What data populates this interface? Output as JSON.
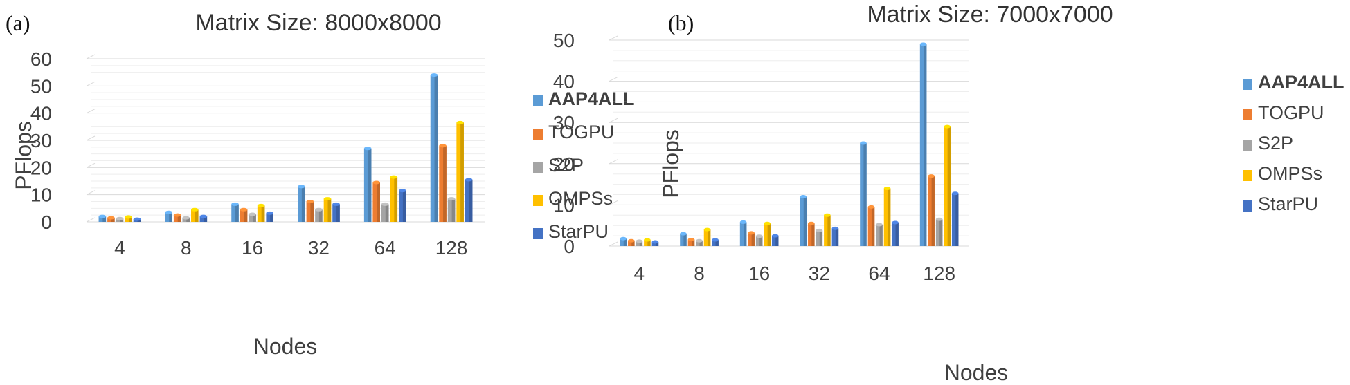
{
  "chart_data": [
    {
      "type": "bar",
      "panel_label": "(a)",
      "title": "Matrix Size: 8000x8000",
      "xlabel": "Nodes",
      "ylabel": "PFlops",
      "ylim": [
        0,
        60
      ],
      "yticks": [
        0,
        10,
        20,
        30,
        40,
        50,
        60
      ],
      "grid": true,
      "legend_position": "right",
      "categories": [
        "4",
        "8",
        "16",
        "32",
        "64",
        "128"
      ],
      "series": [
        {
          "name": "AAP4ALL",
          "color": "#5b9bd5",
          "values": [
            2,
            3.5,
            6.5,
            13,
            27,
            54
          ]
        },
        {
          "name": "TOGPU",
          "color": "#ed7d31",
          "values": [
            1.5,
            2.5,
            4.5,
            7.5,
            14.5,
            28
          ]
        },
        {
          "name": "S2P",
          "color": "#a5a5a5",
          "values": [
            1.2,
            1.5,
            2.8,
            4.5,
            6.5,
            8.5
          ]
        },
        {
          "name": "OMPSs",
          "color": "#ffc000",
          "values": [
            1.8,
            4.5,
            6,
            8.5,
            16.5,
            36.5
          ]
        },
        {
          "name": "StarPU",
          "color": "#4472c4",
          "values": [
            1,
            2,
            3.2,
            6.5,
            11.5,
            15.5
          ]
        }
      ]
    },
    {
      "type": "bar",
      "panel_label": "(b)",
      "title": "Matrix Size: 7000x7000",
      "xlabel": "Nodes",
      "ylabel": "PFlops",
      "ylim": [
        0,
        50
      ],
      "yticks": [
        0,
        10,
        20,
        30,
        40,
        50
      ],
      "grid": true,
      "legend_position": "right",
      "categories": [
        "4",
        "8",
        "16",
        "32",
        "64",
        "128"
      ],
      "series": [
        {
          "name": "AAP4ALL",
          "color": "#5b9bd5",
          "values": [
            1.8,
            3,
            5.8,
            12,
            25,
            49
          ]
        },
        {
          "name": "TOGPU",
          "color": "#ed7d31",
          "values": [
            1.3,
            1.6,
            3.2,
            5.5,
            9.5,
            17
          ]
        },
        {
          "name": "S2P",
          "color": "#a5a5a5",
          "values": [
            1.2,
            1.3,
            2.4,
            3.8,
            5.2,
            6.5
          ]
        },
        {
          "name": "OMPSs",
          "color": "#ffc000",
          "values": [
            1.5,
            4,
            5.5,
            7.5,
            14,
            29
          ]
        },
        {
          "name": "StarPU",
          "color": "#4472c4",
          "values": [
            1,
            1.5,
            2.5,
            4.3,
            5.7,
            12.8
          ]
        }
      ]
    }
  ]
}
